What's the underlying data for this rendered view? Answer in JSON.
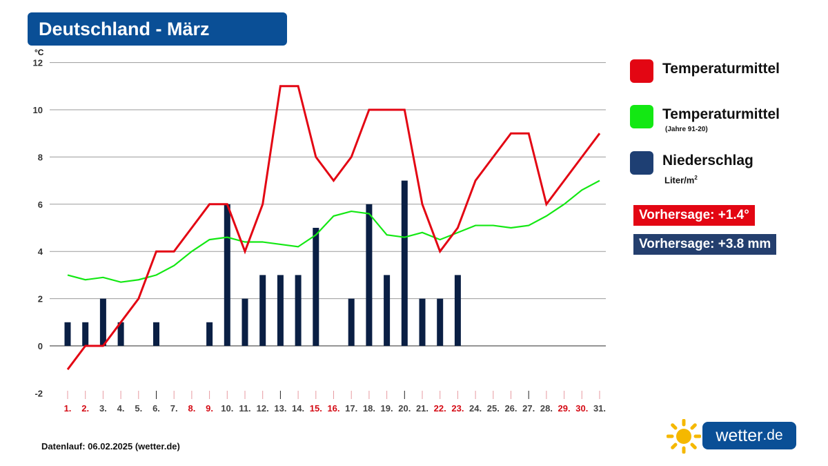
{
  "title": "Deutschland - März",
  "footer": "Datenlauf: 06.02.2025 (wetter.de)",
  "legend": {
    "temp": {
      "label": "Temperaturmittel",
      "color": "#e30613"
    },
    "climate": {
      "label": "Temperaturmittel",
      "sublabel": "(Jahre 91-20)",
      "color": "#13e813"
    },
    "precip": {
      "label": "Niederschlag",
      "unit_base": "Liter/m",
      "unit_exp": "2",
      "color": "#1e3f73"
    }
  },
  "badges": {
    "temp_forecast": {
      "text": "Vorhersage: +1.4°",
      "color": "#e30613"
    },
    "precip_forecast": {
      "text": "Vorhersage: +3.8 mm",
      "color": "#243f6e"
    }
  },
  "logo": {
    "word": "wetter",
    "tld": ".de"
  },
  "chart_data": {
    "type": "line+bar",
    "y_unit": "°C",
    "ylim": [
      -2,
      12
    ],
    "yticks": [
      -2,
      0,
      2,
      4,
      6,
      8,
      10,
      12
    ],
    "categories": [
      "1.",
      "2.",
      "3.",
      "4.",
      "5.",
      "6.",
      "7.",
      "8.",
      "9.",
      "10.",
      "11.",
      "12.",
      "13.",
      "14.",
      "15.",
      "16.",
      "17.",
      "18.",
      "19.",
      "20.",
      "21.",
      "22.",
      "23.",
      "24.",
      "25.",
      "26.",
      "27.",
      "28.",
      "29.",
      "30.",
      "31."
    ],
    "highlighted_days": [
      1,
      2,
      8,
      9,
      15,
      16,
      22,
      23,
      29,
      30
    ],
    "series": [
      {
        "name": "Temperaturmittel",
        "type": "line",
        "color": "#e30613",
        "values": [
          -1,
          0,
          0,
          1,
          2,
          4,
          4,
          5,
          6,
          6,
          4,
          6,
          11,
          11,
          8,
          7,
          8,
          10,
          10,
          10,
          6,
          4,
          5,
          7,
          8,
          9,
          9,
          6,
          7,
          8,
          9
        ]
      },
      {
        "name": "Temperaturmittel (Jahre 91-20)",
        "type": "line",
        "color": "#13e813",
        "values": [
          3.0,
          2.8,
          2.9,
          2.7,
          2.8,
          3.0,
          3.4,
          4.0,
          4.5,
          4.6,
          4.4,
          4.4,
          4.3,
          4.2,
          4.7,
          5.5,
          5.7,
          5.6,
          4.7,
          4.6,
          4.8,
          4.5,
          4.8,
          5.1,
          5.1,
          5.0,
          5.1,
          5.5,
          6.0,
          6.6,
          7.0
        ]
      },
      {
        "name": "Niederschlag",
        "type": "bar",
        "unit": "Liter/m²",
        "color": "#0a1f44",
        "values": [
          1,
          1,
          2,
          1,
          0,
          1,
          0,
          0,
          1,
          6,
          2,
          3,
          3,
          3,
          5,
          0,
          2,
          6,
          3,
          7,
          2,
          2,
          3,
          0,
          0,
          0,
          0,
          0,
          0,
          0,
          0
        ]
      }
    ]
  }
}
